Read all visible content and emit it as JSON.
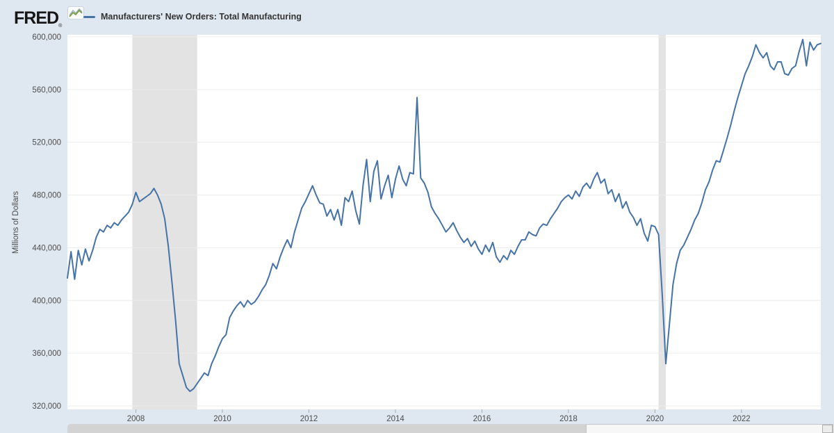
{
  "header": {
    "logo_text": "FRED",
    "logo_reg": "®"
  },
  "legend": {
    "label": "Manufacturers' New Orders: Total Manufacturing"
  },
  "chart_data": {
    "type": "line",
    "series_name": "Manufacturers' New Orders: Total Manufacturing",
    "ylabel": "Millions of Dollars",
    "frequency": "monthly",
    "start": "2006-06",
    "end": "2023-11",
    "ylim": [
      320000,
      600000
    ],
    "grid": "horizontal-only",
    "legend_position": "top-left",
    "y_ticks": [
      {
        "value": 600000,
        "label": "600,000"
      },
      {
        "value": 560000,
        "label": "560,000"
      },
      {
        "value": 520000,
        "label": "520,000"
      },
      {
        "value": 480000,
        "label": "480,000"
      },
      {
        "value": 440000,
        "label": "440,000"
      },
      {
        "value": 400000,
        "label": "400,000"
      },
      {
        "value": 360000,
        "label": "360,000"
      },
      {
        "value": 320000,
        "label": "320,000"
      }
    ],
    "x_ticks": [
      "2008",
      "2010",
      "2012",
      "2014",
      "2016",
      "2018",
      "2020",
      "2022"
    ],
    "recessions": [
      {
        "start": "2007-12",
        "end": "2009-06"
      },
      {
        "start": "2020-02",
        "end": "2020-04"
      }
    ],
    "line_color": "#4572a7",
    "recession_color": "#e3e3e3",
    "values": [
      417000,
      437000,
      416000,
      438000,
      427000,
      439000,
      430000,
      438000,
      448000,
      454000,
      452000,
      457000,
      455000,
      459000,
      457000,
      461000,
      464000,
      467000,
      473000,
      482000,
      475000,
      477000,
      479000,
      481000,
      485000,
      480000,
      473000,
      462000,
      441000,
      414000,
      385000,
      352000,
      343000,
      334000,
      331000,
      333000,
      337000,
      341000,
      345000,
      343000,
      352000,
      358000,
      365000,
      371000,
      374000,
      387000,
      392000,
      396000,
      399000,
      395000,
      400000,
      397000,
      399000,
      403000,
      408000,
      412000,
      419000,
      428000,
      424000,
      433000,
      440000,
      446000,
      440000,
      452000,
      461000,
      470000,
      475000,
      481000,
      487000,
      480000,
      474000,
      473000,
      464000,
      469000,
      461000,
      469000,
      457000,
      478000,
      475000,
      483000,
      468000,
      458000,
      487000,
      507000,
      475000,
      498000,
      506000,
      477000,
      487000,
      495000,
      478000,
      492000,
      502000,
      492000,
      487000,
      497000,
      496000,
      554000,
      493000,
      489000,
      482000,
      471000,
      466000,
      462000,
      457000,
      452000,
      455000,
      459000,
      453000,
      448000,
      444000,
      447000,
      441000,
      445000,
      439000,
      435000,
      442000,
      437000,
      444000,
      433000,
      429000,
      434000,
      431000,
      438000,
      435000,
      441000,
      446000,
      446000,
      452000,
      450000,
      449000,
      455000,
      458000,
      457000,
      462000,
      466000,
      470000,
      475000,
      478000,
      480000,
      477000,
      483000,
      479000,
      486000,
      489000,
      485000,
      492000,
      497000,
      489000,
      492000,
      481000,
      484000,
      475000,
      481000,
      470000,
      475000,
      467000,
      463000,
      457000,
      462000,
      451000,
      445000,
      457000,
      456000,
      450000,
      405000,
      352000,
      382000,
      412000,
      428000,
      438000,
      442000,
      448000,
      454000,
      461000,
      466000,
      474000,
      484000,
      490000,
      499000,
      506000,
      505000,
      514000,
      523000,
      533000,
      544000,
      554000,
      563000,
      572000,
      578000,
      585000,
      594000,
      588000,
      584000,
      588000,
      578000,
      575000,
      581000,
      581000,
      572000,
      571000,
      576000,
      578000,
      589000,
      598000,
      578000,
      596000,
      590000,
      594000,
      595000
    ]
  }
}
